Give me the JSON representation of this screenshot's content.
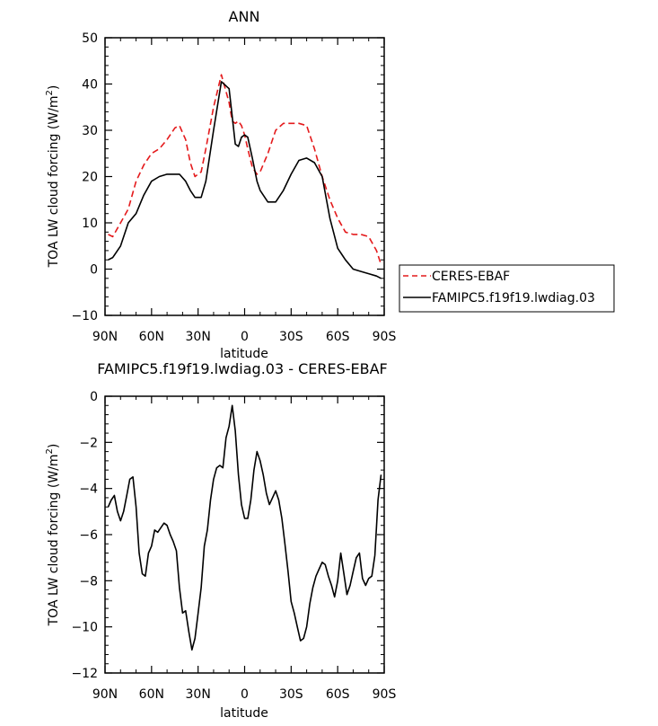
{
  "chart_data": [
    {
      "type": "line",
      "title": "ANN",
      "xlabel": "latitude",
      "ylabel": "TOA LW cloud forcing (W/m",
      "ylabel_sup": "2",
      "ylabel_end": ")",
      "xlim": [
        90,
        -90
      ],
      "ylim": [
        -10,
        50
      ],
      "x_ticks": [
        90,
        60,
        30,
        0,
        -30,
        -60,
        -90
      ],
      "x_tick_labels": [
        "90N",
        "60N",
        "30N",
        "0",
        "30S",
        "60S",
        "90S"
      ],
      "y_ticks": [
        -10,
        0,
        10,
        20,
        30,
        40,
        50
      ],
      "y_tick_labels": [
        "-10",
        "0",
        "10",
        "20",
        "30",
        "40",
        "50"
      ],
      "legend_position": "right",
      "series": [
        {
          "name": "CERES-EBAF",
          "color": "#e41a1c",
          "dash": "dashed",
          "x": [
            88,
            85,
            80,
            75,
            70,
            65,
            60,
            55,
            50,
            45,
            42,
            38,
            35,
            32,
            28,
            25,
            20,
            15,
            10,
            8,
            6,
            4,
            2,
            0,
            -2,
            -5,
            -8,
            -10,
            -15,
            -20,
            -25,
            -30,
            -35,
            -40,
            -45,
            -50,
            -55,
            -60,
            -65,
            -70,
            -75,
            -80,
            -85,
            -88
          ],
          "y": [
            7.5,
            7,
            10,
            13,
            19,
            22.5,
            25,
            26,
            28,
            30.5,
            31,
            28,
            23,
            20,
            21,
            26,
            35,
            42,
            36,
            32,
            31.5,
            32,
            31,
            29,
            26,
            22,
            20.5,
            21,
            25,
            30,
            31.5,
            31.5,
            31.5,
            31,
            26,
            20,
            15,
            11,
            8,
            7.5,
            7.5,
            7,
            4,
            1
          ]
        },
        {
          "name": "FAMIPC5.f19f19.lwdiag.03",
          "color": "#000000",
          "dash": "solid",
          "x": [
            88,
            85,
            80,
            75,
            70,
            65,
            60,
            55,
            50,
            45,
            42,
            38,
            35,
            32,
            28,
            25,
            20,
            15,
            10,
            8,
            6,
            4,
            2,
            0,
            -2,
            -5,
            -8,
            -10,
            -15,
            -20,
            -25,
            -30,
            -35,
            -40,
            -45,
            -50,
            -55,
            -60,
            -65,
            -70,
            -75,
            -80,
            -85,
            -88
          ],
          "y": [
            2,
            2.5,
            5,
            10,
            12,
            16,
            19,
            20,
            20.5,
            20.5,
            20.5,
            19,
            17,
            15.5,
            15.5,
            19,
            30,
            40.5,
            39,
            33,
            27,
            26.5,
            28.5,
            29,
            28.5,
            24,
            19,
            17,
            14.5,
            14.5,
            17,
            20.5,
            23.5,
            24,
            23,
            20,
            11,
            4.5,
            2,
            0,
            -0.5,
            -1,
            -1.5,
            -2
          ]
        }
      ]
    },
    {
      "type": "line",
      "title": "FAMIPC5.f19f19.lwdiag.03 - CERES-EBAF",
      "xlabel": "latitude",
      "ylabel": "TOA LW cloud forcing (W/m",
      "ylabel_sup": "2",
      "ylabel_end": ")",
      "xlim": [
        90,
        -90
      ],
      "ylim": [
        -12,
        0
      ],
      "x_ticks": [
        90,
        60,
        30,
        0,
        -30,
        -60,
        -90
      ],
      "x_tick_labels": [
        "90N",
        "60N",
        "30N",
        "0",
        "30S",
        "60S",
        "90S"
      ],
      "y_ticks": [
        -12,
        -10,
        -8,
        -6,
        -4,
        -2,
        0
      ],
      "y_tick_labels": [
        "-12",
        "-10",
        "-8",
        "-6",
        "-4",
        "-2",
        "0"
      ],
      "series": [
        {
          "color": "#000000",
          "dash": "solid",
          "x": [
            88,
            86,
            84,
            82,
            80,
            78,
            76,
            74,
            72,
            70,
            68,
            66,
            64,
            62,
            60,
            58,
            56,
            54,
            52,
            50,
            48,
            46,
            44,
            42,
            40,
            38,
            36,
            34,
            32,
            30,
            28,
            26,
            24,
            22,
            20,
            18,
            16,
            14,
            12,
            10,
            8,
            6,
            4,
            2,
            0,
            -2,
            -4,
            -6,
            -8,
            -10,
            -12,
            -14,
            -16,
            -18,
            -20,
            -22,
            -24,
            -26,
            -28,
            -30,
            -32,
            -34,
            -36,
            -38,
            -40,
            -42,
            -44,
            -46,
            -48,
            -50,
            -52,
            -54,
            -56,
            -58,
            -60,
            -62,
            -64,
            -66,
            -68,
            -70,
            -72,
            -74,
            -76,
            -78,
            -80,
            -82,
            -84,
            -86,
            -88
          ],
          "y": [
            -4.8,
            -4.5,
            -4.3,
            -5,
            -5.4,
            -5,
            -4.3,
            -3.6,
            -3.5,
            -4.8,
            -6.8,
            -7.7,
            -7.8,
            -6.8,
            -6.5,
            -5.8,
            -5.9,
            -5.7,
            -5.5,
            -5.6,
            -6,
            -6.3,
            -6.7,
            -8.3,
            -9.4,
            -9.3,
            -10.2,
            -11,
            -10.5,
            -9.4,
            -8.3,
            -6.5,
            -5.8,
            -4.5,
            -3.6,
            -3.1,
            -3,
            -3.1,
            -1.8,
            -1.3,
            -0.4,
            -1.5,
            -3.4,
            -4.7,
            -5.3,
            -5.3,
            -4.5,
            -3.2,
            -2.4,
            -2.8,
            -3.4,
            -4.2,
            -4.7,
            -4.4,
            -4.1,
            -4.5,
            -5.3,
            -6.4,
            -7.6,
            -8.9,
            -9.4,
            -10,
            -10.6,
            -10.5,
            -10,
            -9,
            -8.3,
            -7.8,
            -7.5,
            -7.2,
            -7.3,
            -7.8,
            -8.2,
            -8.7,
            -8,
            -6.8,
            -7.7,
            -8.6,
            -8.2,
            -7.6,
            -7,
            -6.8,
            -7.9,
            -8.2,
            -7.9,
            -7.8,
            -6.9,
            -4.5,
            -3.4
          ]
        }
      ]
    }
  ]
}
